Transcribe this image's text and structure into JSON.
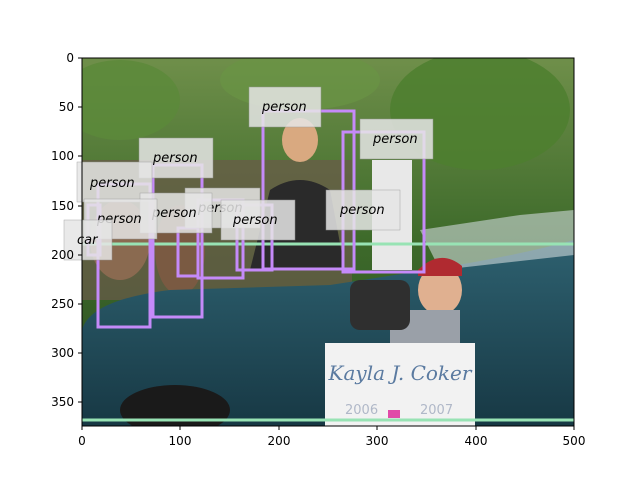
{
  "figure": {
    "x_ticks": [
      "0",
      "100",
      "200",
      "300",
      "400",
      "500"
    ],
    "y_ticks": [
      "0",
      "50",
      "100",
      "150",
      "200",
      "250",
      "300",
      "350"
    ]
  },
  "photo": {
    "description_colors": {
      "sky_trees": "#3f6a2c",
      "car_body": "#1f4652",
      "sign": "#f2f2f2"
    },
    "sign_text": [
      "Kayla J. Coker",
      "2006",
      "2007"
    ]
  },
  "detections": [
    {
      "label": "person",
      "box_color": "#c58af9"
    },
    {
      "label": "person",
      "box_color": "#c58af9"
    },
    {
      "label": "person",
      "box_color": "#c58af9"
    },
    {
      "label": "person",
      "box_color": "#c58af9"
    },
    {
      "label": "person",
      "box_color": "#c58af9"
    },
    {
      "label": "person",
      "box_color": "#c58af9"
    },
    {
      "label": "person",
      "box_color": "#c58af9"
    },
    {
      "label": "person",
      "box_color": "#c58af9"
    },
    {
      "label": "car",
      "box_color": "#98e3b4"
    }
  ]
}
